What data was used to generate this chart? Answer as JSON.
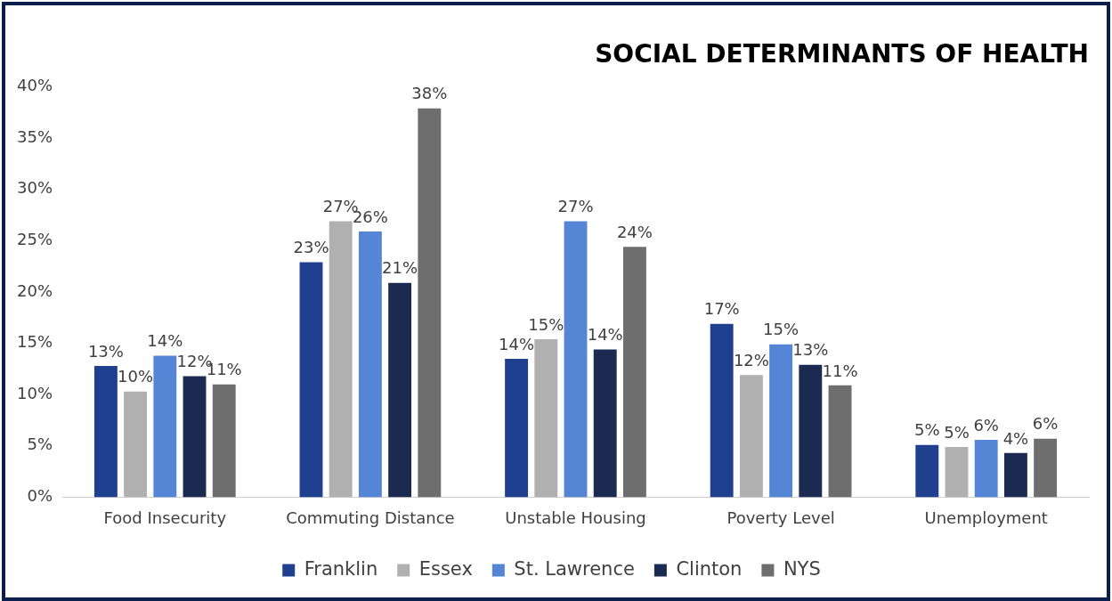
{
  "chart_data": {
    "type": "bar",
    "title": "SOCIAL DETERMINANTS OF HEALTH",
    "categories": [
      "Food Insecurity",
      "Commuting Distance",
      "Unstable Housing",
      "Poverty Level",
      "Unemployment"
    ],
    "series": [
      {
        "name": "Franklin",
        "color": "#1f3f8f",
        "values": [
          12.8,
          22.9,
          13.5,
          16.9,
          5.1
        ],
        "value_labels": [
          "13%",
          "23%",
          "14%",
          "17%",
          "5%"
        ]
      },
      {
        "name": "Essex",
        "color": "#b0b0b0",
        "values": [
          10.3,
          26.9,
          15.4,
          11.9,
          4.9
        ],
        "value_labels": [
          "10%",
          "27%",
          "15%",
          "12%",
          "5%"
        ]
      },
      {
        "name": "St. Lawrence",
        "color": "#5585d5",
        "values": [
          13.8,
          25.9,
          26.9,
          14.9,
          5.6
        ],
        "value_labels": [
          "14%",
          "26%",
          "27%",
          "15%",
          "6%"
        ]
      },
      {
        "name": "Clinton",
        "color": "#1a2a50",
        "values": [
          11.8,
          20.9,
          14.4,
          12.9,
          4.3
        ],
        "value_labels": [
          "12%",
          "21%",
          "14%",
          "13%",
          "4%"
        ]
      },
      {
        "name": "NYS",
        "color": "#6e6e6e",
        "values": [
          11.0,
          37.9,
          24.4,
          10.9,
          5.7
        ],
        "value_labels": [
          "11%",
          "38%",
          "24%",
          "11%",
          "6%"
        ]
      }
    ],
    "ylim": [
      0,
      40
    ],
    "yticks": [
      {
        "value": 0,
        "label": "0%"
      },
      {
        "value": 5,
        "label": "5%"
      },
      {
        "value": 10,
        "label": "10%"
      },
      {
        "value": 15,
        "label": "15%"
      },
      {
        "value": 20,
        "label": "20%"
      },
      {
        "value": 25,
        "label": "25%"
      },
      {
        "value": 30,
        "label": "30%"
      },
      {
        "value": 35,
        "label": "35%"
      },
      {
        "value": 40,
        "label": "40%"
      }
    ],
    "grid": false,
    "legend": "bottom"
  }
}
